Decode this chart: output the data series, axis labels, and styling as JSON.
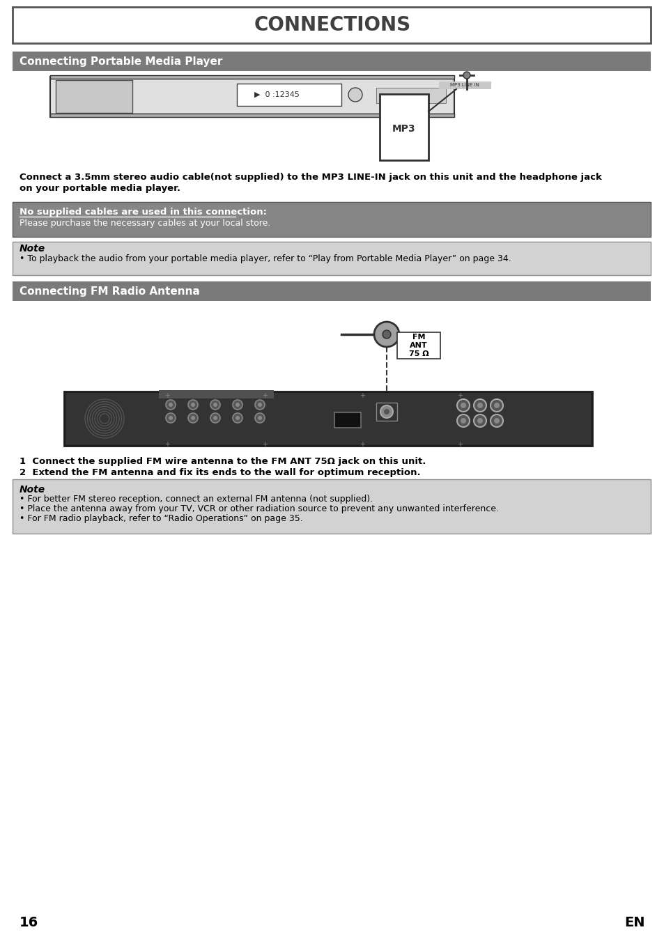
{
  "title": "CONNECTIONS",
  "section1_title": "Connecting Portable Media Player",
  "section2_title": "Connecting FM Radio Antenna",
  "bg_color": "#ffffff",
  "header_bg": "#7a7a7a",
  "header_text_color": "#ffffff",
  "title_text_color": "#404040",
  "page_num_left": "16",
  "page_num_right": "EN",
  "body_text1_line1": "Connect a 3.5mm stereo audio cable(not supplied) to the MP3 LINE-IN jack on this unit and the headphone jack",
  "body_text1_line2": "on your portable media player.",
  "cable_box_bg": "#808080",
  "cable_box_title": "No supplied cables are used in this connection:",
  "cable_box_body": "Please purchase the necessary cables at your local store.",
  "note1_bg": "#d0d0d0",
  "note1_title": "Note",
  "note1_body": "• To playback the audio from your portable media player, refer to “Play from Portable Media Player” on page 34.",
  "step1": "1  Connect the supplied FM wire antenna to the FM ANT 75Ω jack on this unit.",
  "step2": "2  Extend the FM antenna and fix its ends to the wall for optimum reception.",
  "note2_bg": "#d0d0d0",
  "note2_title": "Note",
  "note2_body1": "• For better FM stereo reception, connect an external FM antenna (not supplied).",
  "note2_body2": "• Place the antenna away from your TV, VCR or other radiation source to prevent any unwanted interference.",
  "note2_body3": "• For FM radio playback, refer to “Radio Operations” on page 35.",
  "fm_ant_label": "FM\nANT\n75 Ω"
}
